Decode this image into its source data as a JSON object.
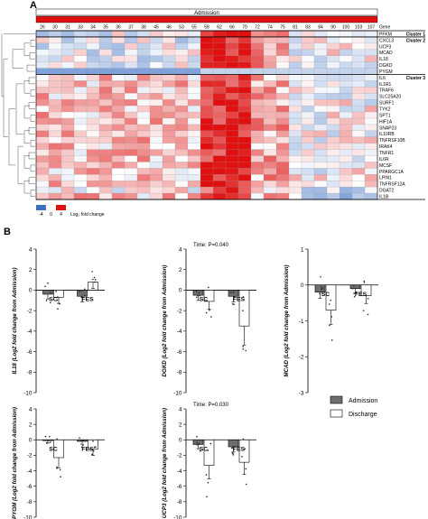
{
  "panel_a": {
    "letter": "A",
    "header": "Admission",
    "gene_col_header": "Gene",
    "patients": [
      "26",
      "30",
      "31",
      "33",
      "34",
      "35",
      "36",
      "37",
      "38",
      "45",
      "46",
      "53",
      "55",
      "58",
      "62",
      "66",
      "70",
      "72",
      "74",
      "75",
      "81",
      "83",
      "84",
      "90",
      "100",
      "103",
      "107"
    ],
    "genes": [
      "PFKM",
      "CXCL3",
      "UCP3",
      "MCAD",
      "IL18",
      "DGKD",
      "PYGM",
      "IL6",
      "IL1R1",
      "TRAF6",
      "SLC25A20",
      "SURF1",
      "TYK2",
      "SPT1",
      "HIF1A",
      "SNAP23",
      "IL10RB",
      "TNFRSF10B",
      "IRAK4",
      "TNFR1",
      "IL6R",
      "MCSF",
      "PPARGC1A",
      "LPIN1",
      "TNFRSF12A",
      "DGAT2",
      "IL1B"
    ],
    "clusters": [
      {
        "label": "Cluster 1",
        "start": 0
      },
      {
        "label": "Cluster 2",
        "start": 1
      },
      {
        "label": "Cluster 3",
        "start": 7
      }
    ],
    "legend": {
      "ticks": [
        "-4",
        "0",
        "4"
      ],
      "label": "Log₂ fold change"
    },
    "colors": {
      "low": "#3b6fc4",
      "mid": "#ffffff",
      "high": "#e01010"
    }
  },
  "panel_b": {
    "letter": "B",
    "legend": {
      "admission": "Admission",
      "discharge": "Discharge"
    },
    "colors": {
      "admission": "#6e6e6e",
      "discharge": "#ffffff"
    },
    "groups": [
      "SC",
      "FES"
    ],
    "plots": [
      {
        "ylabel": "IL18 (Log2 fold change from Admission)",
        "time": "",
        "ylim": [
          -10,
          4
        ],
        "ticks": [
          4,
          2,
          0,
          -2,
          -4,
          -6,
          -8,
          -10
        ],
        "admission": [
          -0.4,
          -0.6
        ],
        "discharge": [
          -0.7,
          0.8
        ]
      },
      {
        "ylabel": "DGKD (Log2 fold change from Admission)",
        "time": "Time: P=0.040",
        "ylim": [
          -10,
          4
        ],
        "ticks": [
          4,
          2,
          0,
          -2,
          -4,
          -6,
          -8,
          -10
        ],
        "admission": [
          -0.5,
          -0.6
        ],
        "discharge": [
          -1.1,
          -3.5
        ]
      },
      {
        "ylabel": "MCAD (Log2 fold change from Admission)",
        "time": "",
        "ylim": [
          -3,
          1
        ],
        "ticks": [
          1,
          0,
          -1,
          -2,
          -3
        ],
        "admission": [
          -0.2,
          -0.1
        ],
        "discharge": [
          -0.7,
          -0.3
        ]
      },
      {
        "ylabel": "PYGM (Log2 fold change from Admission)",
        "time": "",
        "ylim": [
          -10,
          4
        ],
        "ticks": [
          4,
          2,
          0,
          -2,
          -4,
          -6,
          -8,
          -10
        ],
        "admission": [
          -0.1,
          -0.2
        ],
        "discharge": [
          -2.3,
          -1.2
        ]
      },
      {
        "ylabel": "UCP3 (Log2 fold change from Admission)",
        "time": "Time: P=0.030",
        "ylim": [
          -10,
          4
        ],
        "ticks": [
          4,
          2,
          0,
          -2,
          -4,
          -6,
          -8,
          -10
        ],
        "admission": [
          -0.6,
          -0.9
        ],
        "discharge": [
          -3.3,
          -2.9
        ]
      }
    ]
  }
}
